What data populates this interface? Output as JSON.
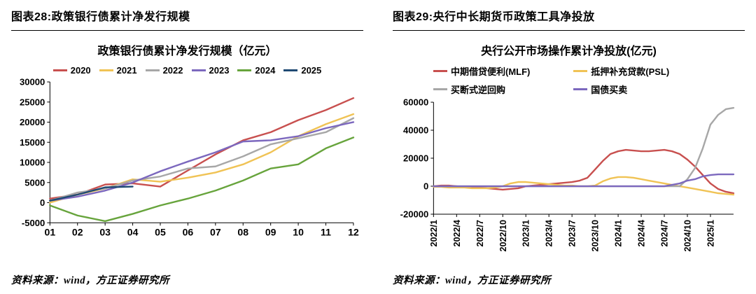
{
  "panels": {
    "left": {
      "header": "图表28:政策银行债累计净发行规模",
      "source": "资料来源：wind，方正证券研究所"
    },
    "right": {
      "header": "图表29:央行中长期货币政策工具净投放",
      "source": "资料来源：wind，方正证券研究所"
    }
  },
  "chart_data": [
    {
      "type": "line",
      "title": "政策银行债累计净发行规模（亿元）",
      "x": [
        "01",
        "02",
        "03",
        "04",
        "05",
        "06",
        "07",
        "08",
        "09",
        "10",
        "11",
        "12"
      ],
      "ylim": [
        -5000,
        30000
      ],
      "yticks": [
        30000,
        25000,
        20000,
        15000,
        10000,
        5000,
        0,
        -5000
      ],
      "grid": false,
      "legend_position": "top",
      "series": [
        {
          "name": "2020",
          "color": "#C8504F",
          "values": [
            1000,
            2000,
            4500,
            4800,
            4000,
            8000,
            12000,
            15500,
            17500,
            20500,
            23000,
            26000
          ]
        },
        {
          "name": "2021",
          "color": "#F0C355",
          "values": [
            0,
            2000,
            3500,
            5800,
            5200,
            6200,
            7500,
            9500,
            12500,
            16500,
            19500,
            22000
          ]
        },
        {
          "name": "2022",
          "color": "#A7A7A7",
          "values": [
            500,
            2500,
            3500,
            5500,
            6500,
            8500,
            9000,
            11500,
            14500,
            16000,
            17500,
            21000
          ]
        },
        {
          "name": "2023",
          "color": "#7C68BE",
          "values": [
            500,
            1500,
            3000,
            5000,
            7800,
            10200,
            12500,
            15200,
            15500,
            16500,
            18500,
            20000
          ]
        },
        {
          "name": "2024",
          "color": "#67A43C",
          "values": [
            -700,
            -3200,
            -4600,
            -2800,
            -700,
            1000,
            3000,
            5500,
            8500,
            9500,
            13500,
            16200
          ]
        },
        {
          "name": "2025",
          "color": "#1F4A73",
          "values": [
            500,
            2000,
            3800,
            4000
          ]
        }
      ]
    },
    {
      "type": "line",
      "title": "央行公开市场操作累计净投放(亿元)",
      "x": [
        "2022/1",
        "2022/2",
        "2022/3",
        "2022/4",
        "2022/5",
        "2022/6",
        "2022/7",
        "2022/8",
        "2022/9",
        "2022/10",
        "2022/11",
        "2022/12",
        "2023/1",
        "2023/2",
        "2023/3",
        "2023/4",
        "2023/5",
        "2023/6",
        "2023/7",
        "2023/8",
        "2023/9",
        "2023/10",
        "2023/11",
        "2023/12",
        "2024/1",
        "2024/2",
        "2024/3",
        "2024/4",
        "2024/5",
        "2024/6",
        "2024/7",
        "2024/8",
        "2024/9",
        "2024/10",
        "2024/11",
        "2024/12",
        "2025/1",
        "2025/2",
        "2025/3",
        "2025/4"
      ],
      "xticks": {
        "indices": [
          0,
          3,
          6,
          9,
          12,
          15,
          18,
          21,
          24,
          27,
          30,
          33,
          36
        ]
      },
      "xtick_rotation": 90,
      "ylim": [
        -20000,
        60000
      ],
      "yticks": [
        60000,
        40000,
        20000,
        0,
        -20000
      ],
      "grid": false,
      "legend_position": "top",
      "series": [
        {
          "name": "中期借贷便利(MLF)",
          "color": "#C8504F",
          "values": [
            0,
            500,
            500,
            0,
            -500,
            -1000,
            -1000,
            -1500,
            -2000,
            -2500,
            -2000,
            -1500,
            0,
            500,
            1000,
            1500,
            2000,
            2500,
            3000,
            4000,
            6000,
            12000,
            18000,
            23000,
            25000,
            26000,
            25500,
            25000,
            25000,
            25500,
            26000,
            25000,
            23000,
            19000,
            14000,
            8000,
            2000,
            -2000,
            -4000,
            -5000
          ]
        },
        {
          "name": "抵押补充贷款(PSL)",
          "color": "#F0C355",
          "values": [
            -500,
            -500,
            -1000,
            -1000,
            -1000,
            -1500,
            -1500,
            -1500,
            -1000,
            0,
            2000,
            3000,
            3000,
            2500,
            2000,
            1500,
            1000,
            500,
            500,
            0,
            0,
            500,
            3500,
            5500,
            6500,
            6500,
            6000,
            5000,
            4000,
            3000,
            2000,
            1000,
            0,
            -1000,
            -2000,
            -3000,
            -4000,
            -5000,
            -5500,
            -6000
          ]
        },
        {
          "name": "买断式逆回购",
          "color": "#A7A7A7",
          "values": [
            0,
            0,
            0,
            0,
            0,
            0,
            0,
            0,
            0,
            0,
            0,
            0,
            0,
            0,
            0,
            0,
            0,
            0,
            0,
            0,
            0,
            0,
            0,
            0,
            0,
            0,
            0,
            0,
            0,
            0,
            0,
            0,
            0,
            5000,
            13000,
            27000,
            44000,
            51000,
            55000,
            56000
          ]
        },
        {
          "name": "国债买卖",
          "color": "#7C68BE",
          "values": [
            0,
            0,
            0,
            0,
            0,
            0,
            0,
            0,
            0,
            0,
            0,
            0,
            0,
            0,
            0,
            0,
            0,
            0,
            0,
            0,
            0,
            0,
            0,
            0,
            0,
            0,
            0,
            0,
            0,
            0,
            0,
            1000,
            2000,
            4000,
            5000,
            7000,
            8000,
            8500,
            8500,
            8500
          ]
        }
      ]
    }
  ]
}
